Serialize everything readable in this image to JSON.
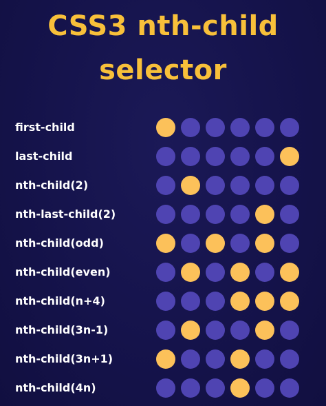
{
  "title": {
    "line1": "CSS3 nth-child",
    "line2": "selector"
  },
  "colors": {
    "background": "#15134b",
    "title": "#f8c03a",
    "dot_inactive": "#4f44b2",
    "dot_active": "#fcc15a",
    "label": "#ffffff"
  },
  "rows": [
    {
      "label": "first-child",
      "dots": [
        1,
        0,
        0,
        0,
        0,
        0
      ]
    },
    {
      "label": "last-child",
      "dots": [
        0,
        0,
        0,
        0,
        0,
        1
      ]
    },
    {
      "label": "nth-child(2)",
      "dots": [
        0,
        1,
        0,
        0,
        0,
        0
      ]
    },
    {
      "label": "nth-last-child(2)",
      "dots": [
        0,
        0,
        0,
        0,
        1,
        0
      ]
    },
    {
      "label": "nth-child(odd)",
      "dots": [
        1,
        0,
        1,
        0,
        1,
        0
      ]
    },
    {
      "label": "nth-child(even)",
      "dots": [
        0,
        1,
        0,
        1,
        0,
        1
      ]
    },
    {
      "label": "nth-child(n+4)",
      "dots": [
        0,
        0,
        0,
        1,
        1,
        1
      ]
    },
    {
      "label": "nth-child(3n-1)",
      "dots": [
        0,
        1,
        0,
        0,
        1,
        0
      ]
    },
    {
      "label": "nth-child(3n+1)",
      "dots": [
        1,
        0,
        0,
        1,
        0,
        0
      ]
    },
    {
      "label": "nth-child(4n)",
      "dots": [
        0,
        0,
        0,
        1,
        0,
        0
      ]
    }
  ]
}
